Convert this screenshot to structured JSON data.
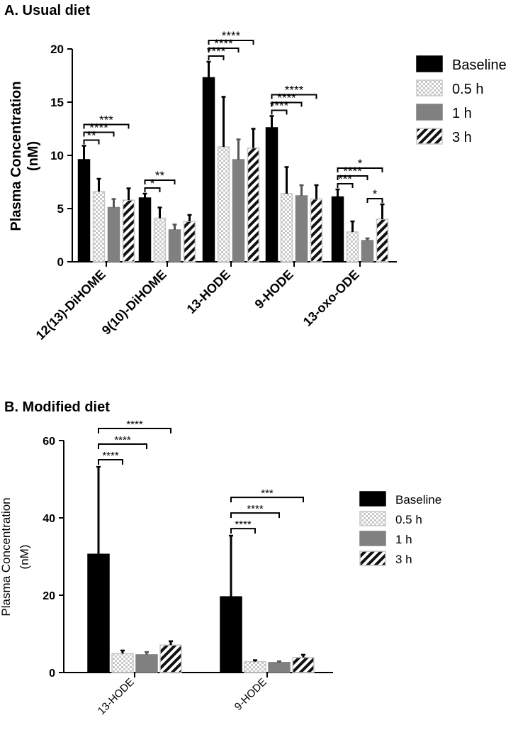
{
  "chart_data": [
    {
      "type": "bar",
      "title": "A. Usual diet",
      "ylabel": "Plasma Concentration (nM)",
      "ylabel_lines": [
        "Plasma Concentration",
        "(nM)"
      ],
      "ylim": [
        0,
        20
      ],
      "yticks": [
        0,
        5,
        10,
        15,
        20
      ],
      "categories": [
        "12(13)-DiHOME",
        "9(10)-DiHOME",
        "13-HODE",
        "9-HODE",
        "13-oxo-ODE"
      ],
      "legend": "right",
      "series": [
        {
          "name": "Baseline",
          "style": "solid-black",
          "values": [
            9.6,
            6.0,
            17.3,
            12.6,
            6.1
          ],
          "errors": [
            1.3,
            0.4,
            1.5,
            1.1,
            0.7
          ]
        },
        {
          "name": "0.5 h",
          "style": "checker",
          "values": [
            6.6,
            4.1,
            10.8,
            6.4,
            2.8
          ],
          "errors": [
            1.2,
            1.0,
            4.7,
            2.5,
            1.0
          ]
        },
        {
          "name": "1 h",
          "style": "solid-gray",
          "values": [
            5.1,
            3.0,
            9.6,
            6.2,
            2.0
          ],
          "errors": [
            0.8,
            0.5,
            1.9,
            1.0,
            0.2
          ]
        },
        {
          "name": "3 h",
          "style": "hatch",
          "values": [
            5.8,
            3.8,
            10.7,
            5.9,
            4.0
          ],
          "errors": [
            1.1,
            0.6,
            1.8,
            1.3,
            1.4
          ]
        }
      ],
      "significance": [
        {
          "category": 0,
          "from": 0,
          "to": 1,
          "label": "**"
        },
        {
          "category": 0,
          "from": 0,
          "to": 2,
          "label": "****"
        },
        {
          "category": 0,
          "from": 0,
          "to": 3,
          "label": "***"
        },
        {
          "category": 1,
          "from": 0,
          "to": 1,
          "label": "*"
        },
        {
          "category": 1,
          "from": 0,
          "to": 2,
          "label": "**"
        },
        {
          "category": 2,
          "from": 0,
          "to": 1,
          "label": "****"
        },
        {
          "category": 2,
          "from": 0,
          "to": 2,
          "label": "****"
        },
        {
          "category": 2,
          "from": 0,
          "to": 3,
          "label": "****"
        },
        {
          "category": 3,
          "from": 0,
          "to": 1,
          "label": "****"
        },
        {
          "category": 3,
          "from": 0,
          "to": 2,
          "label": "****"
        },
        {
          "category": 3,
          "from": 0,
          "to": 3,
          "label": "****"
        },
        {
          "category": 4,
          "from": 0,
          "to": 1,
          "label": "***"
        },
        {
          "category": 4,
          "from": 0,
          "to": 2,
          "label": "****"
        },
        {
          "category": 4,
          "from": 0,
          "to": 3,
          "label": "*"
        },
        {
          "category": 4,
          "from": 2,
          "to": 3,
          "label": "*"
        }
      ]
    },
    {
      "type": "bar",
      "title": "B. Modified diet",
      "ylabel": "Plasma Concentration (nM)",
      "ylabel_lines": [
        "Plasma Concentration",
        "(nM)"
      ],
      "ylim": [
        0,
        60
      ],
      "yticks": [
        0,
        20,
        40,
        60
      ],
      "categories": [
        "13-HODE",
        "9-HODE"
      ],
      "legend": "right",
      "series": [
        {
          "name": "Baseline",
          "style": "solid-black",
          "values": [
            30.6,
            19.6
          ],
          "errors": [
            22.6,
            15.8
          ]
        },
        {
          "name": "0.5 h",
          "style": "checker",
          "values": [
            4.9,
            2.8
          ],
          "errors": [
            0.8,
            0.4
          ]
        },
        {
          "name": "1 h",
          "style": "solid-gray",
          "values": [
            4.6,
            2.6
          ],
          "errors": [
            0.7,
            0.3
          ]
        },
        {
          "name": "3 h",
          "style": "hatch",
          "values": [
            7.1,
            3.9
          ],
          "errors": [
            1.0,
            0.7
          ]
        }
      ],
      "significance": [
        {
          "category": 0,
          "from": 0,
          "to": 1,
          "label": "****"
        },
        {
          "category": 0,
          "from": 0,
          "to": 2,
          "label": "****"
        },
        {
          "category": 0,
          "from": 0,
          "to": 3,
          "label": "****"
        },
        {
          "category": 1,
          "from": 0,
          "to": 1,
          "label": "****"
        },
        {
          "category": 1,
          "from": 0,
          "to": 2,
          "label": "****"
        },
        {
          "category": 1,
          "from": 0,
          "to": 3,
          "label": "***"
        }
      ]
    }
  ]
}
